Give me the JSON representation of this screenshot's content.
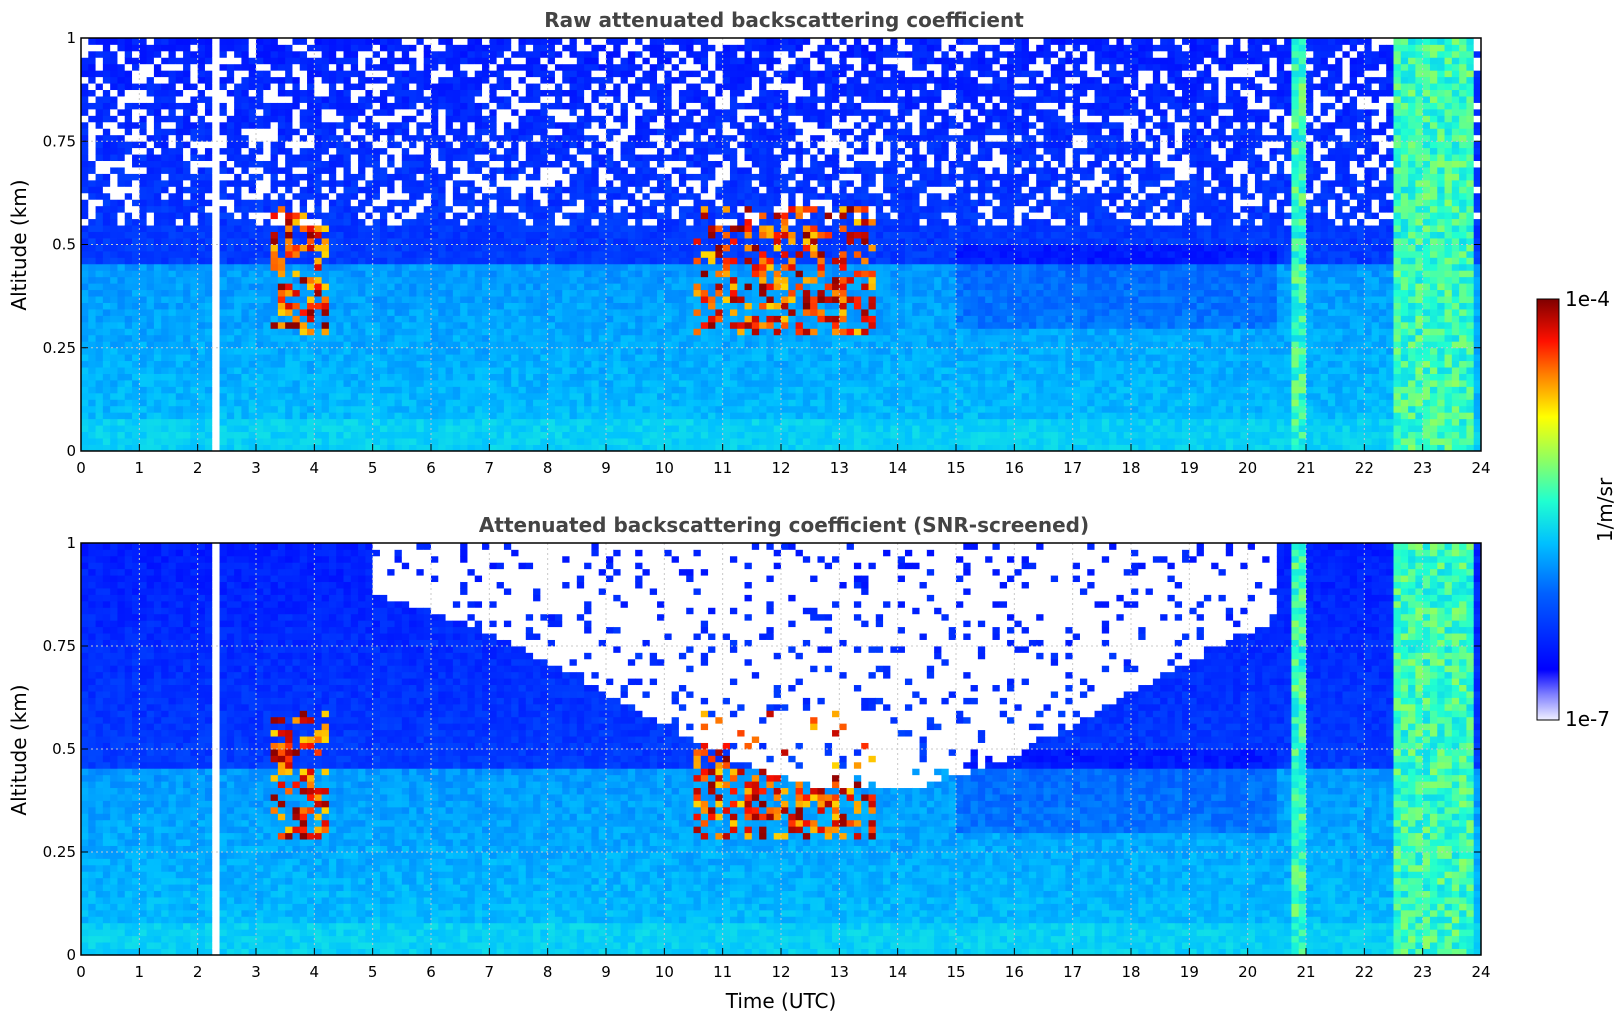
{
  "chart_data": [
    {
      "type": "heatmap",
      "title": "Raw attenuated backscattering coefficient",
      "xlabel": "",
      "ylabel": "Altitude (km)",
      "xlim": [
        0,
        24
      ],
      "ylim": [
        0,
        1
      ],
      "x_ticks": [
        "0",
        "1",
        "2",
        "3",
        "4",
        "5",
        "6",
        "7",
        "8",
        "9",
        "10",
        "11",
        "12",
        "13",
        "14",
        "15",
        "16",
        "17",
        "18",
        "19",
        "20",
        "21",
        "22",
        "23",
        "24"
      ],
      "y_ticks": [
        "0",
        "0.25",
        "0.5",
        "0.75",
        "1"
      ],
      "grid": true,
      "screened": false,
      "features": {
        "boundary_layer_top_km": 0.45,
        "aerosol_plumes_utc": [
          [
            3.3,
            4.3
          ],
          [
            10.5,
            13.6
          ]
        ],
        "strong_signal_columns_utc": [
          [
            20.7,
            21.0
          ],
          [
            22.5,
            23.9
          ]
        ],
        "missing_data_utc": [
          2.35
        ]
      }
    },
    {
      "type": "heatmap",
      "title": "Attenuated backscattering coefficient (SNR-screened)",
      "xlabel": "Time (UTC)",
      "ylabel": "Altitude (km)",
      "xlim": [
        0,
        24
      ],
      "ylim": [
        0,
        1
      ],
      "x_ticks": [
        "0",
        "1",
        "2",
        "3",
        "4",
        "5",
        "6",
        "7",
        "8",
        "9",
        "10",
        "11",
        "12",
        "13",
        "14",
        "15",
        "16",
        "17",
        "18",
        "19",
        "20",
        "21",
        "22",
        "23",
        "24"
      ],
      "y_ticks": [
        "0",
        "0.25",
        "0.5",
        "0.75",
        "1"
      ],
      "grid": true,
      "screened": true,
      "features": {
        "boundary_layer_top_km": 0.45,
        "aerosol_plumes_utc": [
          [
            3.3,
            4.3
          ],
          [
            10.5,
            13.6
          ]
        ],
        "strong_signal_columns_utc": [
          [
            20.7,
            21.0
          ],
          [
            22.5,
            23.9
          ]
        ],
        "missing_data_utc": [
          2.35
        ]
      }
    }
  ],
  "colorbar": {
    "label": "1/m/sr",
    "max_label": "1e-4",
    "min_label": "1e-7",
    "scale": "log",
    "colormap": "jet",
    "range": [
      1e-07,
      0.0001
    ]
  }
}
